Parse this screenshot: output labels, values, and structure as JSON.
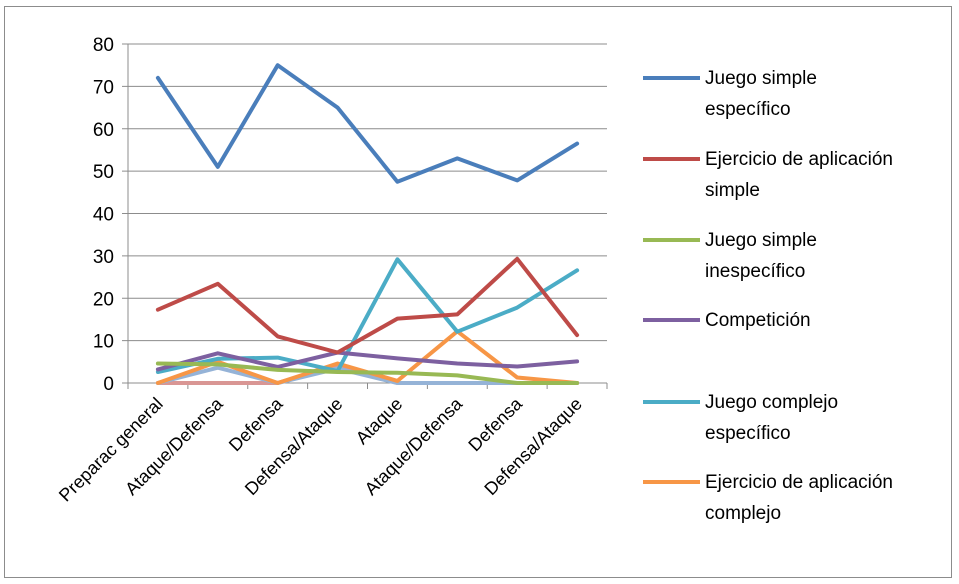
{
  "chart_data": {
    "type": "line",
    "title": "",
    "xlabel": "",
    "ylabel": "",
    "ylim": [
      0,
      80
    ],
    "yticks": [
      "0",
      "10",
      "20",
      "30",
      "40",
      "50",
      "60",
      "70",
      "80"
    ],
    "grid": true,
    "legend_position": "right",
    "categories": [
      "Preparac general",
      "Ataque/Defensa",
      "Defensa",
      "Defensa/Ataque",
      "Ataque",
      "Ataque/Defensa",
      "Defensa",
      "Defensa/Ataque"
    ],
    "series": [
      {
        "name_lines": [
          "Juego simple",
          "específico"
        ],
        "color": "#4A7EBB",
        "values": [
          72,
          51,
          75,
          65,
          47.5,
          53,
          47.8,
          56.5
        ]
      },
      {
        "name_lines": [
          "Ejercicio de aplicación",
          "simple"
        ],
        "color": "#BE4B48",
        "values": [
          17.3,
          23.4,
          11,
          7.2,
          15.2,
          16.2,
          29.3,
          11.3
        ]
      },
      {
        "name_lines": [
          "Juego simple",
          "inespecífico"
        ],
        "color": "#98B954",
        "values": [
          4.6,
          4.4,
          3.1,
          2.6,
          2.4,
          1.8,
          0,
          0
        ]
      },
      {
        "name_lines": [
          "Competición"
        ],
        "color": "#7D60A0",
        "values": [
          3.2,
          7,
          3.8,
          7.2,
          5.8,
          4.6,
          3.9,
          5.1
        ]
      },
      {
        "name_lines": [
          "Juego complejo",
          "específico"
        ],
        "color": "#4BACC6",
        "values": [
          2.6,
          5.7,
          6,
          2.8,
          29.2,
          12.1,
          17.8,
          26.6
        ]
      },
      {
        "name_lines": [
          "Ejercicio de aplicación",
          "complejo"
        ],
        "color": "#F79646",
        "values": [
          0,
          5,
          0,
          4.6,
          0.5,
          12.2,
          1.3,
          0
        ]
      },
      {
        "name_lines": [],
        "color": "#95B3D7",
        "values": [
          0,
          3.6,
          0,
          3.4,
          0,
          0,
          0,
          0
        ]
      },
      {
        "name_lines": [],
        "color": "#D99694",
        "values": [
          0,
          0,
          0,
          4.2,
          0,
          0,
          0,
          0
        ]
      }
    ]
  }
}
